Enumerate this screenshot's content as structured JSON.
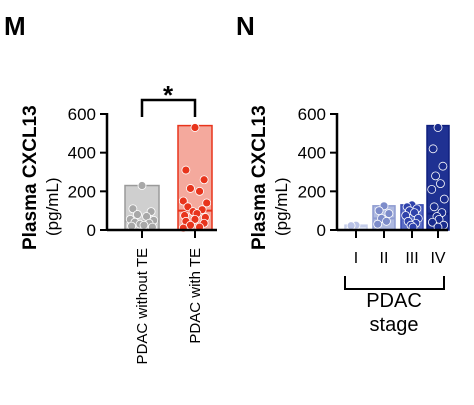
{
  "chart_data": [
    {
      "panel": "M",
      "type": "bar",
      "ylabel": "Plasma CXCL13",
      "yunit": "(pg/mL)",
      "ylim": [
        0,
        600
      ],
      "yticks": [
        "0",
        "200",
        "400",
        "600"
      ],
      "categories": [
        "PDAC without TE",
        "PDAC with TE"
      ],
      "values": [
        230,
        540
      ],
      "bar_colors": [
        "#cfcfcf",
        "#f4a99d"
      ],
      "bar_edge_colors": [
        "#9a9a9a",
        "#e8341c"
      ],
      "point_colors": [
        "#a8a8a8",
        "#e8341c"
      ],
      "medians": [
        45,
        100
      ],
      "points": [
        [
          230,
          110,
          95,
          80,
          70,
          55,
          50,
          40,
          35,
          30,
          25,
          20,
          15
        ],
        [
          530,
          310,
          260,
          215,
          200,
          150,
          140,
          120,
          105,
          95,
          85,
          75,
          65,
          55,
          45,
          35,
          25,
          15,
          10
        ]
      ],
      "significance": "*"
    },
    {
      "panel": "N",
      "type": "bar",
      "ylabel": "Plasma CXCL13",
      "yunit": "(pg/mL)",
      "ylim": [
        0,
        600
      ],
      "yticks": [
        "0",
        "200",
        "400",
        "600"
      ],
      "categories": [
        "I",
        "II",
        "III",
        "IV"
      ],
      "group_label": [
        "PDAC",
        "stage"
      ],
      "values": [
        25,
        125,
        130,
        540
      ],
      "bar_colors": [
        "#dde3f3",
        "#aeb9e0",
        "#5a6cc4",
        "#1f3192"
      ],
      "bar_edge_colors": [
        "#c5cdea",
        "#8e9bd1",
        "#3b4db4",
        "#0f1f7e"
      ],
      "point_colors": [
        "#b9c2e6",
        "#7d8cca",
        "#2f42ab",
        "#1a2c8e"
      ],
      "medians": [
        20,
        60,
        75,
        85
      ],
      "points": [
        [
          25,
          22
        ],
        [
          125,
          100,
          85,
          60,
          45,
          30
        ],
        [
          130,
          120,
          110,
          100,
          90,
          75,
          60,
          45,
          35,
          25,
          15
        ],
        [
          530,
          420,
          330,
          280,
          240,
          210,
          160,
          120,
          90,
          70,
          55,
          40,
          25,
          15
        ]
      ]
    }
  ]
}
